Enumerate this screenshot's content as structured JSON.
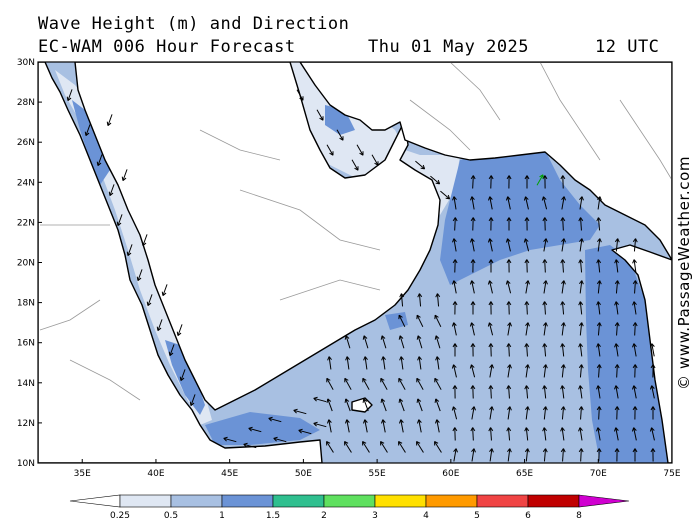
{
  "title": {
    "line1": "Wave Height (m) and Direction",
    "model": "EC-WAM 006 Hour Forecast",
    "date": "Thu 01 May 2025",
    "time": "12 UTC"
  },
  "credit": "© www.PassageWeather.com",
  "axes": {
    "lat_ticks": [
      "30N",
      "28N",
      "26N",
      "24N",
      "22N",
      "20N",
      "18N",
      "16N",
      "14N",
      "12N",
      "10N"
    ],
    "lon_ticks": [
      "35E",
      "40E",
      "45E",
      "50E",
      "55E",
      "60E",
      "65E",
      "70E",
      "75E"
    ],
    "lat_range": [
      10,
      30
    ],
    "lon_range": [
      32,
      75
    ]
  },
  "legend": {
    "labels": [
      "0.25",
      "0.5",
      "1",
      "1.5",
      "2",
      "3",
      "4",
      "5",
      "6",
      "8"
    ],
    "colors": [
      "#ffffff",
      "#dfe7f3",
      "#a8c0e2",
      "#6b93d6",
      "#2fbf8f",
      "#5fe05f",
      "#ffe000",
      "#ff9a00",
      "#f04444",
      "#c00000",
      "#d000d0"
    ]
  },
  "colors": {
    "sea_low": "#dfe7f3",
    "sea_mid": "#a8c0e2",
    "sea_high": "#6b93d6",
    "land": "#ffffff",
    "coast": "#000000",
    "border": "#999999",
    "arrow_highlight": "#00a000"
  }
}
